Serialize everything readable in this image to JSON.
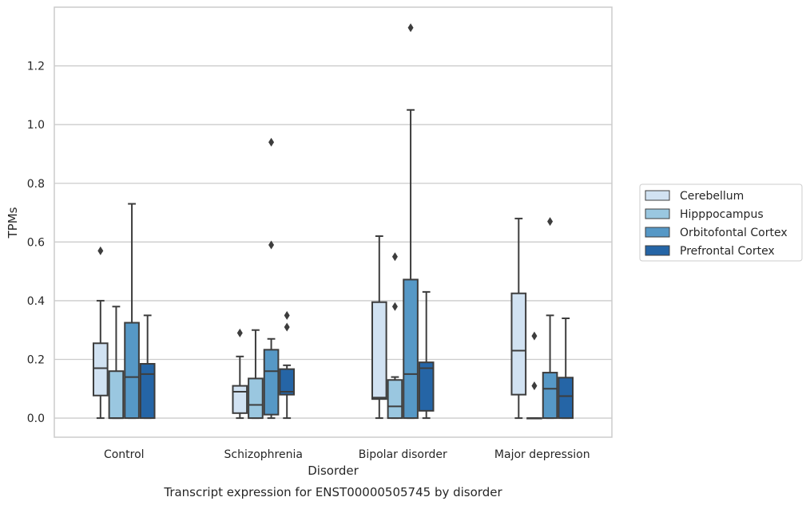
{
  "caption": "Transcript expression for ENST00000505745 by disorder",
  "chart_data": {
    "type": "boxplot",
    "title": "",
    "xlabel": "Disorder",
    "ylabel": "TPMs",
    "ylim": [
      -0.065,
      1.4
    ],
    "yticks": [
      0.0,
      0.2,
      0.4,
      0.6,
      0.8,
      1.0,
      1.2
    ],
    "ytick_labels": [
      "0.0",
      "0.2",
      "0.4",
      "0.6",
      "0.8",
      "1.0",
      "1.2"
    ],
    "grid": "horizontal",
    "legend_position": "right",
    "categories": [
      "Control",
      "Schizophrenia",
      "Bipolar disorder",
      "Major depression"
    ],
    "series": [
      {
        "name": "Cerebellum",
        "color": "#d1e2f2",
        "boxes": [
          {
            "min": 0.0,
            "q1": 0.077,
            "median": 0.17,
            "q3": 0.255,
            "max": 0.4,
            "outliers": [
              0.57
            ]
          },
          {
            "min": 0.0,
            "q1": 0.017,
            "median": 0.09,
            "q3": 0.11,
            "max": 0.21,
            "outliers": [
              0.29
            ]
          },
          {
            "min": 0.0,
            "q1": 0.065,
            "median": 0.07,
            "q3": 0.395,
            "max": 0.62,
            "outliers": []
          },
          {
            "min": 0.0,
            "q1": 0.08,
            "median": 0.23,
            "q3": 0.425,
            "max": 0.68,
            "outliers": []
          }
        ]
      },
      {
        "name": "Hipppocampus",
        "color": "#9ac7e0",
        "boxes": [
          {
            "min": 0.0,
            "q1": 0.0,
            "median": 0.0,
            "q3": 0.16,
            "max": 0.38,
            "outliers": []
          },
          {
            "min": 0.0,
            "q1": 0.0,
            "median": 0.045,
            "q3": 0.135,
            "max": 0.3,
            "outliers": []
          },
          {
            "min": 0.0,
            "q1": 0.0,
            "median": 0.04,
            "q3": 0.13,
            "max": 0.14,
            "outliers": [
              0.38,
              0.55
            ]
          },
          {
            "min": 0.0,
            "q1": 0.0,
            "median": 0.0,
            "q3": 0.0,
            "max": 0.0,
            "outliers": [
              0.11,
              0.28
            ]
          }
        ]
      },
      {
        "name": "Orbitofontal Cortex",
        "color": "#5698c6",
        "boxes": [
          {
            "min": 0.0,
            "q1": 0.0,
            "median": 0.14,
            "q3": 0.325,
            "max": 0.73,
            "outliers": []
          },
          {
            "min": 0.0,
            "q1": 0.012,
            "median": 0.16,
            "q3": 0.233,
            "max": 0.27,
            "outliers": [
              0.59,
              0.94
            ]
          },
          {
            "min": 0.0,
            "q1": 0.0,
            "median": 0.15,
            "q3": 0.472,
            "max": 1.05,
            "outliers": [
              1.33
            ]
          },
          {
            "min": 0.0,
            "q1": 0.0,
            "median": 0.1,
            "q3": 0.155,
            "max": 0.35,
            "outliers": [
              0.67
            ]
          }
        ]
      },
      {
        "name": "Prefrontal Cortex",
        "color": "#2565a6",
        "boxes": [
          {
            "min": 0.0,
            "q1": 0.0,
            "median": 0.15,
            "q3": 0.185,
            "max": 0.35,
            "outliers": []
          },
          {
            "min": 0.0,
            "q1": 0.08,
            "median": 0.09,
            "q3": 0.167,
            "max": 0.18,
            "outliers": [
              0.31,
              0.35
            ]
          },
          {
            "min": 0.0,
            "q1": 0.025,
            "median": 0.17,
            "q3": 0.19,
            "max": 0.43,
            "outliers": []
          },
          {
            "min": 0.0,
            "q1": 0.0,
            "median": 0.075,
            "q3": 0.138,
            "max": 0.34,
            "outliers": []
          }
        ]
      }
    ]
  }
}
